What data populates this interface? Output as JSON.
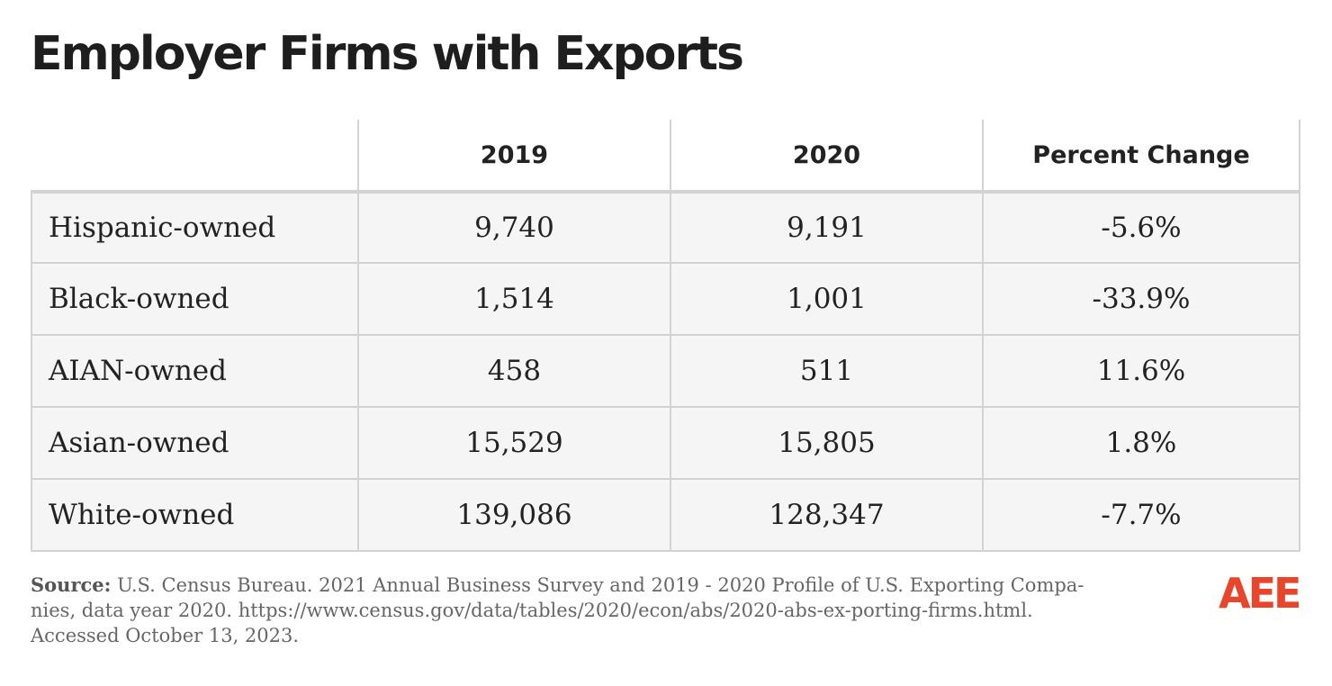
{
  "title": "Employer Firms with Exports",
  "table": {
    "header": [
      "2019",
      "2020",
      "Percent Change"
    ],
    "rows": [
      [
        "Hispanic-owned",
        "9,740",
        "9,191",
        "-5.6%"
      ],
      [
        "Black-owned",
        "1,514",
        "1,001",
        "-33.9%"
      ],
      [
        "AIAN-owned",
        "458",
        "511",
        "11.6%"
      ],
      [
        "Asian-owned",
        "15,529",
        "15,805",
        "1.8%"
      ],
      [
        "White-owned",
        "139,086",
        "128,347",
        "-7.7%"
      ]
    ]
  },
  "source": {
    "label": "Source:",
    "lines": [
      "U.S. Census Bureau. 2021 Annual Business Survey and 2019 - 2020 Profile of U.S. Exporting Compa-",
      "nies, data year 2020. https://www.census.gov/data/tables/2020/econ/abs/2020-abs-ex-porting-firms.html.",
      "Accessed October 13, 2023."
    ]
  },
  "logo": "AEE"
}
